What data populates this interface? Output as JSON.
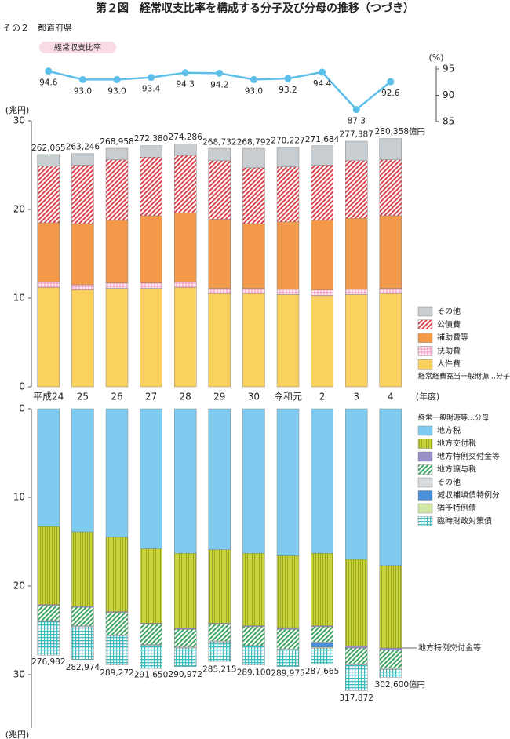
{
  "title": "第２図　経常収支比率を構成する分子及び分母の推移（つづき）",
  "subtitle": "その２　都道府県",
  "chart_data": [
    {
      "type": "line",
      "title": "経常収支比率",
      "unit": "(%)",
      "color": "#5bbfea",
      "values": [
        94.6,
        93.0,
        93.0,
        93.4,
        94.3,
        94.2,
        93.0,
        93.2,
        94.4,
        87.3,
        92.6
      ],
      "value_labels": [
        "94.6",
        "93.0",
        "93.0",
        "93.4",
        "94.3",
        "94.2",
        "93.0",
        "93.2",
        "94.4",
        "87.3",
        "92.6"
      ],
      "ylim": [
        85,
        95
      ],
      "yticks": [
        85,
        90,
        95
      ]
    },
    {
      "type": "stacked_bar",
      "unit": "(兆円)",
      "x_label": "(年度)",
      "categories": [
        "平成24",
        "25",
        "26",
        "27",
        "28",
        "29",
        "30",
        "令和元",
        "2",
        "3",
        "4"
      ],
      "ylim": [
        0,
        30
      ],
      "yticks": [
        0,
        10,
        20,
        30
      ],
      "invert_y": false,
      "legend_note": "経常経費充当一般財源…分子",
      "series": [
        {
          "name": "人件費",
          "color": "#f9d15c",
          "pattern": "solid",
          "values": [
            11.2,
            10.9,
            11.1,
            11.1,
            11.2,
            10.5,
            10.5,
            10.4,
            10.3,
            10.4,
            10.5
          ]
        },
        {
          "name": "扶助費",
          "color": "#ee8fbd",
          "pattern": "dots",
          "values": [
            0.6,
            0.6,
            0.6,
            0.6,
            0.6,
            0.6,
            0.6,
            0.6,
            0.6,
            0.6,
            0.6
          ]
        },
        {
          "name": "補助費等",
          "color": "#f29a4a",
          "pattern": "solid",
          "values": [
            6.7,
            6.9,
            7.1,
            7.6,
            7.8,
            7.8,
            7.3,
            7.6,
            7.9,
            8.0,
            8.2
          ]
        },
        {
          "name": "公債費",
          "color": "#d8343f",
          "pattern": "diagonal",
          "values": [
            6.4,
            6.6,
            6.8,
            6.6,
            6.5,
            6.6,
            6.3,
            6.2,
            6.2,
            6.5,
            6.3
          ]
        },
        {
          "name": "その他",
          "color": "#c8cdd1",
          "pattern": "solid",
          "values": [
            1.3,
            1.3,
            1.3,
            1.3,
            1.3,
            1.4,
            2.2,
            2.2,
            2.2,
            2.2,
            2.4
          ]
        }
      ],
      "totals": {
        "values": [
          26.2065,
          26.3246,
          26.8958,
          27.238,
          27.4286,
          26.8732,
          26.8792,
          27.0227,
          27.1684,
          27.7387,
          28.0358
        ],
        "value_labels": [
          "262,065",
          "263,246",
          "268,958",
          "272,380",
          "274,286",
          "268,732",
          "268,792",
          "270,227",
          "271,684",
          "277,387",
          "280,358億円"
        ]
      }
    },
    {
      "type": "stacked_bar",
      "unit": "(兆円)",
      "ylim": [
        0,
        36
      ],
      "yticks": [
        0,
        10,
        20,
        30
      ],
      "invert_y": true,
      "legend_note": "経常一般財源等…分母",
      "annotation": "地方特例交付金等",
      "series": [
        {
          "name": "地方税",
          "color": "#7fcbf0",
          "pattern": "solid",
          "values": [
            13.3,
            13.9,
            14.5,
            15.8,
            16.3,
            15.9,
            16.3,
            16.6,
            16.3,
            17.0,
            17.7
          ]
        },
        {
          "name": "地方交付税",
          "color": "#c8d63c",
          "pattern": "vertical",
          "values": [
            8.8,
            8.4,
            8.4,
            8.4,
            8.5,
            8.3,
            8.2,
            8.1,
            8.2,
            9.8,
            9.3
          ]
        },
        {
          "name": "地方特例交付金等",
          "color": "#9a8fc6",
          "pattern": "solid",
          "values": [
            0.1,
            0.1,
            0.1,
            0.1,
            0.1,
            0.1,
            0.1,
            0.2,
            0.1,
            0.2,
            0.2
          ]
        },
        {
          "name": "地方譲与税",
          "color": "#2f9e55",
          "pattern": "diagonal",
          "values": [
            1.7,
            2.1,
            2.5,
            2.3,
            2.0,
            1.9,
            2.1,
            2.2,
            1.7,
            1.8,
            2.1
          ]
        },
        {
          "name": "その他",
          "color": "#d5d9dc",
          "pattern": "solid",
          "values": [
            0.1,
            0.1,
            0.1,
            0.1,
            0.1,
            0.1,
            0.1,
            0.1,
            0.1,
            0.1,
            0.1
          ]
        },
        {
          "name": "減収補塡債特例分",
          "color": "#4a8fd8",
          "pattern": "solid",
          "values": [
            0,
            0,
            0,
            0,
            0,
            0,
            0,
            0,
            0.5,
            0,
            0
          ]
        },
        {
          "name": "猶予特例債",
          "color": "#d2e6a6",
          "pattern": "solid",
          "values": [
            0,
            0,
            0,
            0,
            0,
            0,
            0,
            0,
            0.1,
            0,
            0
          ]
        },
        {
          "name": "臨時財政対策債",
          "color": "#3fbcbc",
          "pattern": "grid",
          "values": [
            3.8,
            3.7,
            3.3,
            2.6,
            2.1,
            2.2,
            2.1,
            1.9,
            1.8,
            2.9,
            0.9
          ]
        }
      ],
      "totals": {
        "values": [
          27.6982,
          28.2974,
          28.9272,
          29.165,
          29.0972,
          28.5215,
          28.91,
          28.9975,
          28.7665,
          31.7872,
          30.26
        ],
        "value_labels": [
          "276,982",
          "282,974",
          "289,272",
          "291,650",
          "290,972",
          "285,215",
          "289,100",
          "289,975",
          "287,665",
          "317,872",
          "302,600億円"
        ]
      }
    }
  ]
}
